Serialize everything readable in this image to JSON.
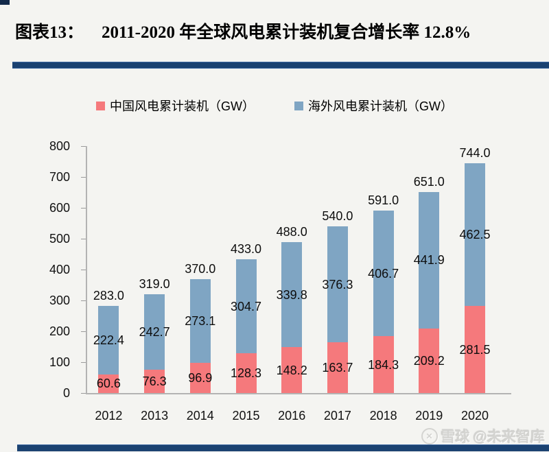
{
  "header": {
    "figure_label": "图表13：",
    "figure_title": "2011-2020 年全球风电累计装机复合增长率 12.8%"
  },
  "watermark": {
    "brand": "雪球",
    "handle": "@未来智库",
    "logo_glyph": "✕"
  },
  "colors": {
    "china_red": "#f5797c",
    "overseas_blue": "#7fa5c3",
    "divider_navy": "#1b4271",
    "axis_gray": "#b3b3b3",
    "label_text": "#0d0d0d",
    "background": "#f4f4f1",
    "watermark_gray": "#d4d4d1"
  },
  "chart_data": {
    "type": "bar",
    "stacked": true,
    "title": "2011-2020 年全球风电累计装机复合增长率 12.8%",
    "categories": [
      "2012",
      "2013",
      "2014",
      "2015",
      "2016",
      "2017",
      "2018",
      "2019",
      "2020"
    ],
    "series": [
      {
        "name": "中国风电累计装机（GW）",
        "color": "#f5797c",
        "values": [
          60.6,
          76.3,
          96.9,
          128.3,
          148.2,
          163.7,
          184.3,
          209.2,
          281.5
        ]
      },
      {
        "name": "海外风电累计装机（GW）",
        "color": "#7fa5c3",
        "values": [
          222.4,
          242.7,
          273.1,
          304.7,
          339.8,
          376.3,
          406.7,
          441.9,
          462.5
        ]
      }
    ],
    "totals": [
      283.0,
      319.0,
      370.0,
      433.0,
      488.0,
      540.0,
      591.0,
      651.0,
      744.0
    ],
    "xlabel": "",
    "ylabel": "",
    "ylim": [
      0,
      800
    ],
    "yticks": [
      0,
      100,
      200,
      300,
      400,
      500,
      600,
      700,
      800
    ],
    "grid": false,
    "legend_position": "top",
    "value_labels": "all-segments-and-totals",
    "value_label_decimals": 1
  }
}
